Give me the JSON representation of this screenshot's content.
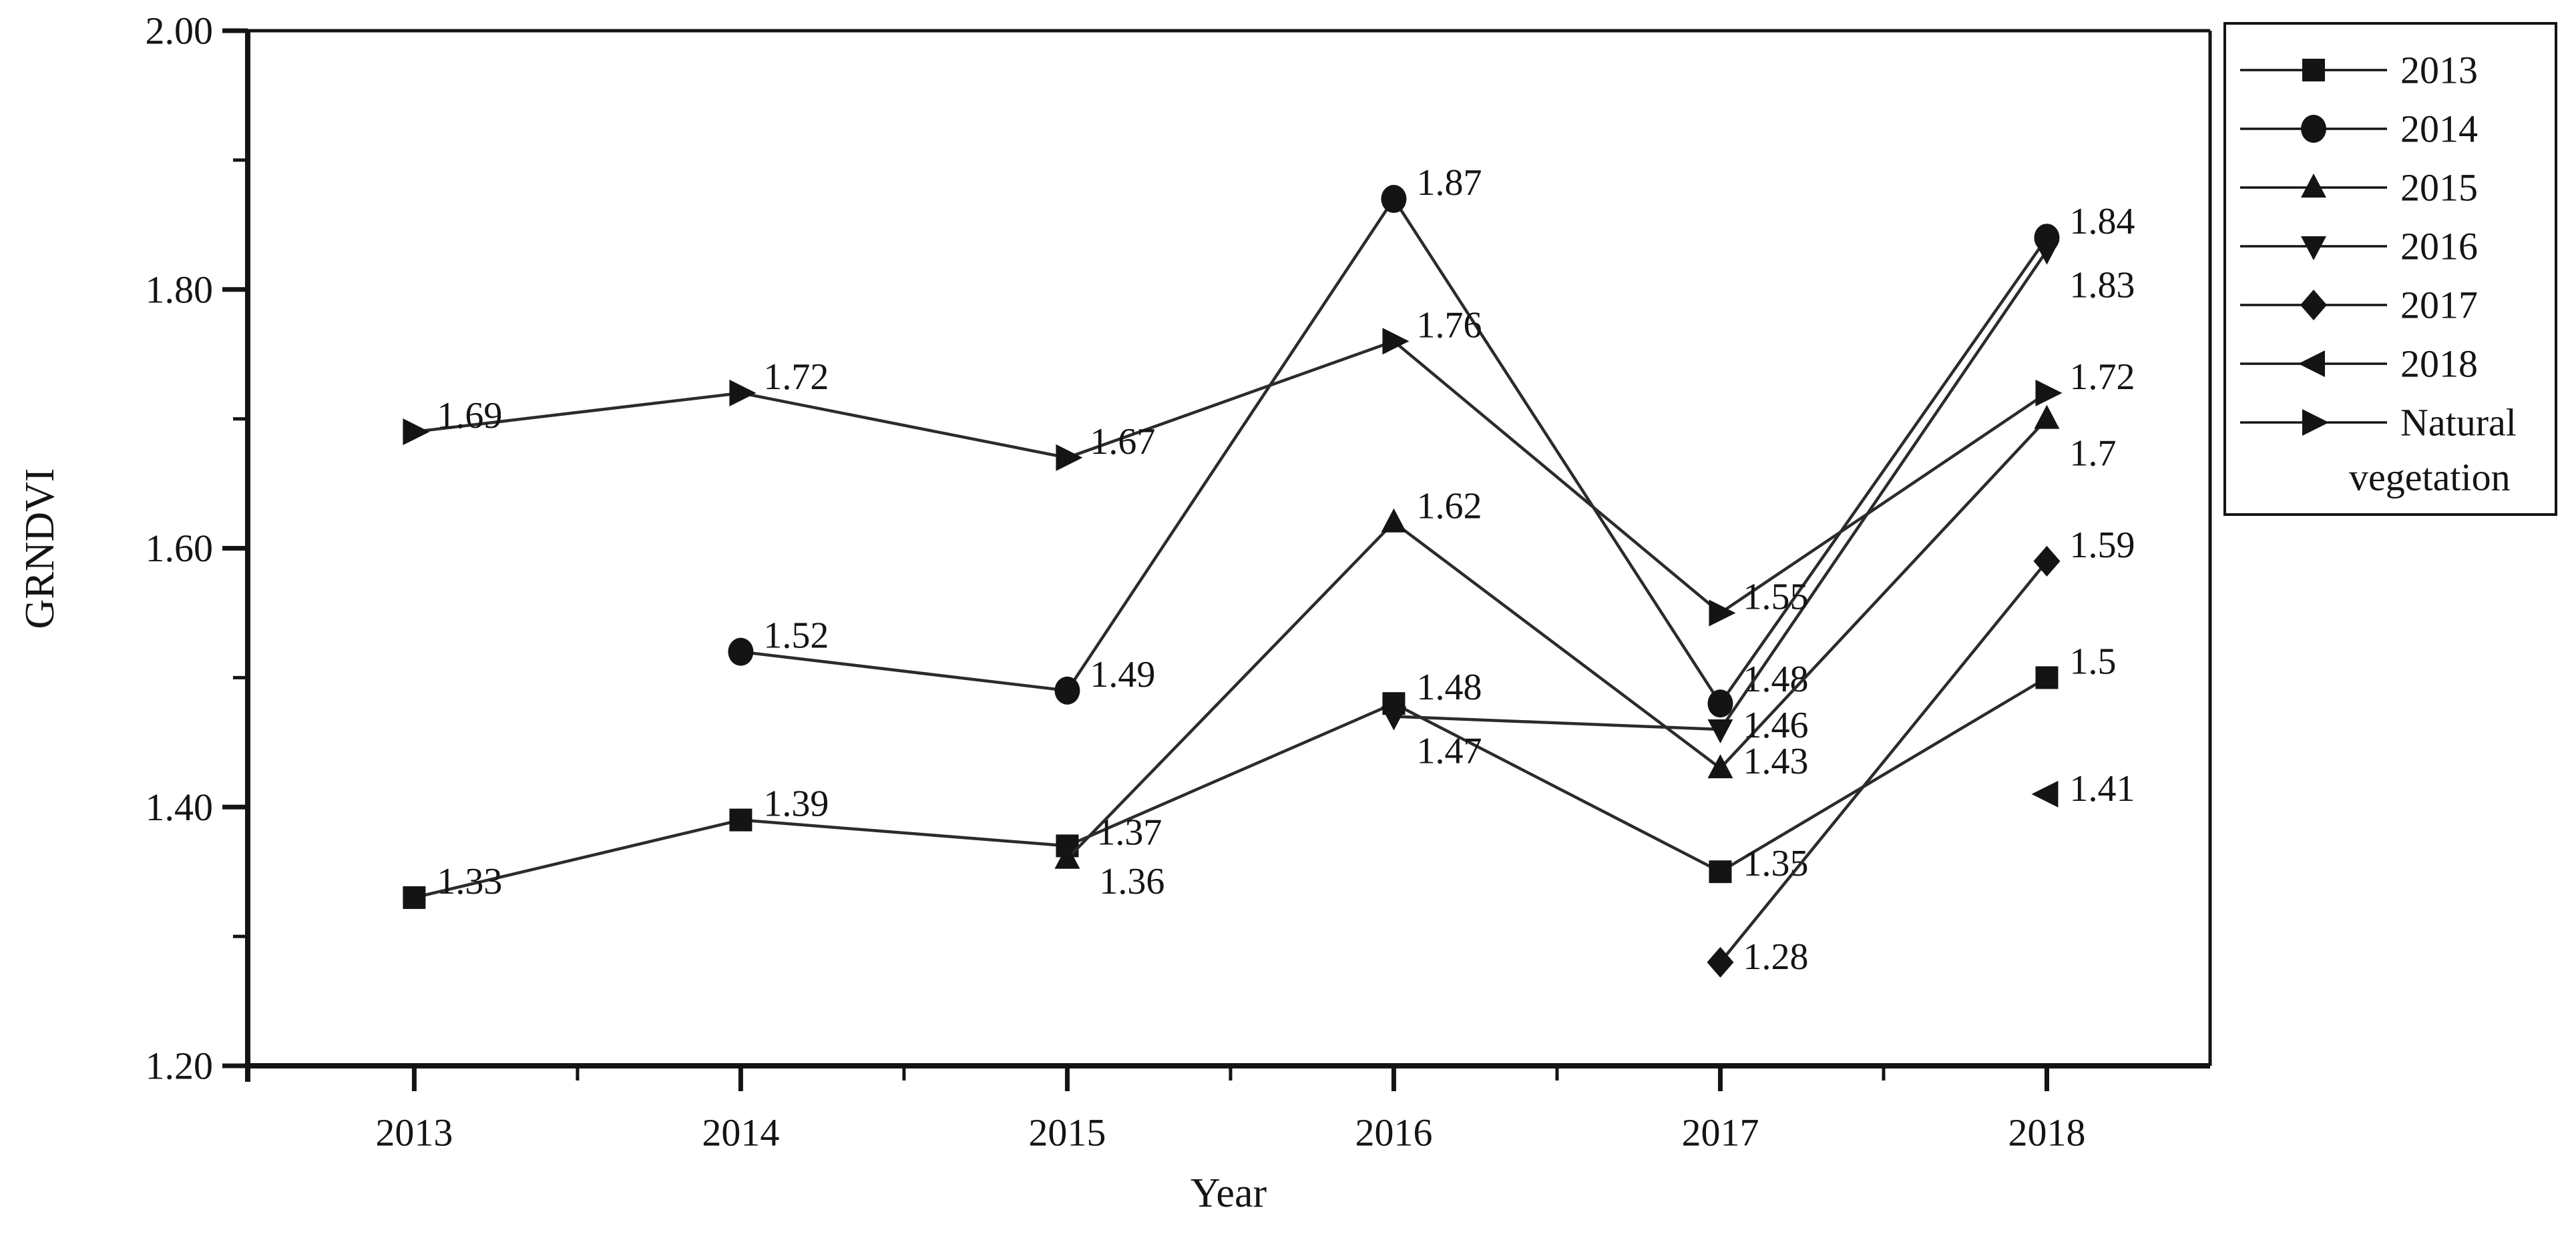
{
  "figure": {
    "background": "#ffffff",
    "ink_color": "#141414",
    "line_color": "#2b2b2b"
  },
  "chart_data": {
    "type": "line",
    "title": "",
    "xlabel": "Year",
    "ylabel": "GRNDVI",
    "xlim": [
      2012.49,
      2018.5
    ],
    "ylim": [
      1.2,
      2.0
    ],
    "grid": false,
    "legend_position": "outside-right",
    "x_ticks": [
      {
        "v": 2013,
        "label": "2013"
      },
      {
        "v": 2014,
        "label": "2014"
      },
      {
        "v": 2015,
        "label": "2015"
      },
      {
        "v": 2016,
        "label": "2016"
      },
      {
        "v": 2017,
        "label": "2017"
      },
      {
        "v": 2018,
        "label": "2018"
      }
    ],
    "x_minor_ticks": [
      2013.5,
      2014.5,
      2015.5,
      2016.5,
      2017.5
    ],
    "y_ticks": [
      {
        "v": 2.0,
        "label": "2.00"
      },
      {
        "v": 1.8,
        "label": "1.80"
      },
      {
        "v": 1.6,
        "label": "1.60"
      },
      {
        "v": 1.4,
        "label": "1.40"
      },
      {
        "v": 1.2,
        "label": "1.20"
      }
    ],
    "y_minor_ticks": [
      1.9,
      1.7,
      1.5,
      1.3
    ],
    "series": [
      {
        "name": "2013",
        "marker": "square",
        "points": [
          {
            "x": 2013,
            "y": 1.33,
            "label": "1.33"
          },
          {
            "x": 2014,
            "y": 1.39,
            "label": "1.39"
          },
          {
            "x": 2015,
            "y": 1.37,
            "label": "1.37",
            "dx": 44,
            "dy": -20
          },
          {
            "x": 2016,
            "y": 1.48,
            "label": "1.48"
          },
          {
            "x": 2017,
            "y": 1.35,
            "label": "1.35",
            "dy": -12
          },
          {
            "x": 2018,
            "y": 1.5,
            "label": "1.5"
          }
        ]
      },
      {
        "name": "2014",
        "marker": "circle",
        "points": [
          {
            "x": 2014,
            "y": 1.52,
            "label": "1.52"
          },
          {
            "x": 2015,
            "y": 1.49,
            "label": "1.49"
          },
          {
            "x": 2016,
            "y": 1.87,
            "label": "1.87"
          },
          {
            "x": 2017,
            "y": 1.48,
            "label": "1.48",
            "dy": -36
          },
          {
            "x": 2018,
            "y": 1.84,
            "label": "1.84"
          }
        ]
      },
      {
        "name": "2015",
        "marker": "triangle-up",
        "points": [
          {
            "x": 2015,
            "y": 1.36,
            "label": "1.36",
            "dx": 48,
            "dy": 34
          },
          {
            "x": 2016,
            "y": 1.62,
            "label": "1.62"
          },
          {
            "x": 2017,
            "y": 1.43,
            "label": "1.43",
            "dy": -10
          },
          {
            "x": 2018,
            "y": 1.7,
            "label": "1.7",
            "dy": 52
          }
        ]
      },
      {
        "name": "2016",
        "marker": "triangle-down",
        "points": [
          {
            "x": 2016,
            "y": 1.47,
            "label": "1.47",
            "dy": 52
          },
          {
            "x": 2017,
            "y": 1.46,
            "label": "1.46",
            "dy": -6
          },
          {
            "x": 2018,
            "y": 1.83,
            "label": "1.83",
            "dy": 52
          }
        ]
      },
      {
        "name": "2017",
        "marker": "diamond",
        "points": [
          {
            "x": 2017,
            "y": 1.28,
            "label": "1.28",
            "dy": -8
          },
          {
            "x": 2018,
            "y": 1.59,
            "label": "1.59"
          }
        ]
      },
      {
        "name": "2018",
        "marker": "triangle-left",
        "points": [
          {
            "x": 2018,
            "y": 1.41,
            "label": "1.41",
            "dy": -8
          }
        ]
      },
      {
        "name": "Natural vegetation",
        "legend_label": "Natural",
        "legend_label2": "vegetation",
        "marker": "triangle-right",
        "points": [
          {
            "x": 2013,
            "y": 1.69,
            "label": "1.69"
          },
          {
            "x": 2014,
            "y": 1.72,
            "label": "1.72"
          },
          {
            "x": 2015,
            "y": 1.67,
            "label": "1.67"
          },
          {
            "x": 2016,
            "y": 1.76,
            "label": "1.76"
          },
          {
            "x": 2017,
            "y": 1.55,
            "label": "1.55"
          },
          {
            "x": 2018,
            "y": 1.72,
            "label": "1.72"
          }
        ]
      }
    ]
  }
}
